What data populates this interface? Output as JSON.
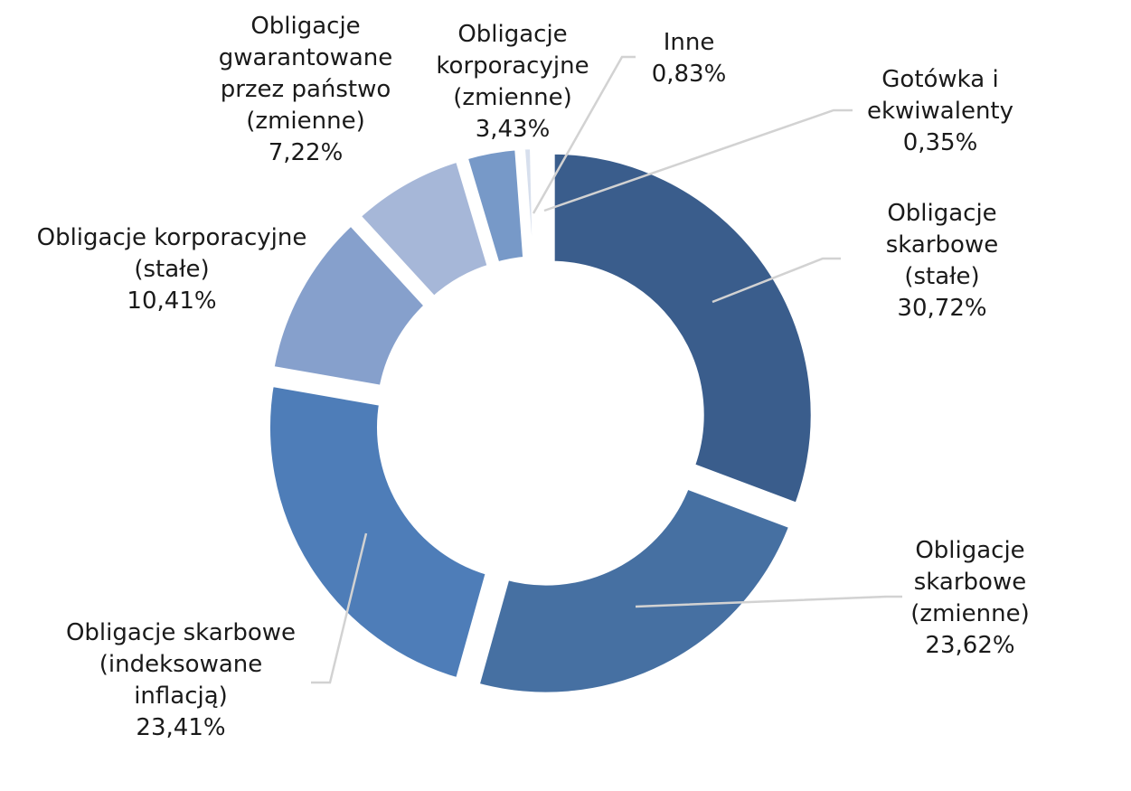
{
  "chart_data": {
    "type": "pie",
    "style": "donut",
    "title": "",
    "slices": [
      {
        "name": "Obligacje skarbowe (stałe)",
        "value": 30.72,
        "value_label": "30,72%",
        "color": "#3a5d8c"
      },
      {
        "name": "Obligacje skarbowe (zmienne)",
        "value": 23.62,
        "value_label": "23,62%",
        "color": "#4670a2"
      },
      {
        "name": "Obligacje skarbowe (indeksowane inflacją)",
        "value": 23.41,
        "value_label": "23,41%",
        "color": "#4e7db8"
      },
      {
        "name": "Obligacje korporacyjne (stałe)",
        "value": 10.41,
        "value_label": "10,41%",
        "color": "#86a0cc"
      },
      {
        "name": "Obligacje gwarantowane przez państwo (zmienne)",
        "value": 7.22,
        "value_label": "7,22%",
        "color": "#a6b7d8"
      },
      {
        "name": "Obligacje korporacyjne (zmienne)",
        "value": 3.43,
        "value_label": "3,43%",
        "color": "#7799c8"
      },
      {
        "name": "Inne",
        "value": 0.83,
        "value_label": "0,83%",
        "color": "#d7dfed"
      },
      {
        "name": "Gotówka i ekwiwalenty",
        "value": 0.35,
        "value_label": "0,35%",
        "color": "#e6ebf4"
      }
    ],
    "labels": [
      {
        "lines": [
          "Obligacje",
          "skarbowe",
          "(stałe)",
          "30,72%"
        ]
      },
      {
        "lines": [
          "Obligacje",
          "skarbowe",
          "(zmienne)",
          "23,62%"
        ]
      },
      {
        "lines": [
          "Obligacje skarbowe",
          "(indeksowane",
          "inflacją)",
          "23,41%"
        ]
      },
      {
        "lines": [
          "Obligacje korporacyjne",
          "(stałe)",
          "10,41%"
        ]
      },
      {
        "lines": [
          "Obligacje",
          "gwarantowane",
          "przez państwo",
          "(zmienne)",
          "7,22%"
        ]
      },
      {
        "lines": [
          "Obligacje",
          "korporacyjne",
          "(zmienne)",
          "3,43%"
        ]
      },
      {
        "lines": [
          "Inne",
          "0,83%"
        ]
      },
      {
        "lines": [
          "Gotówka i",
          "ekwiwalenty",
          "0,35%"
        ]
      }
    ]
  }
}
